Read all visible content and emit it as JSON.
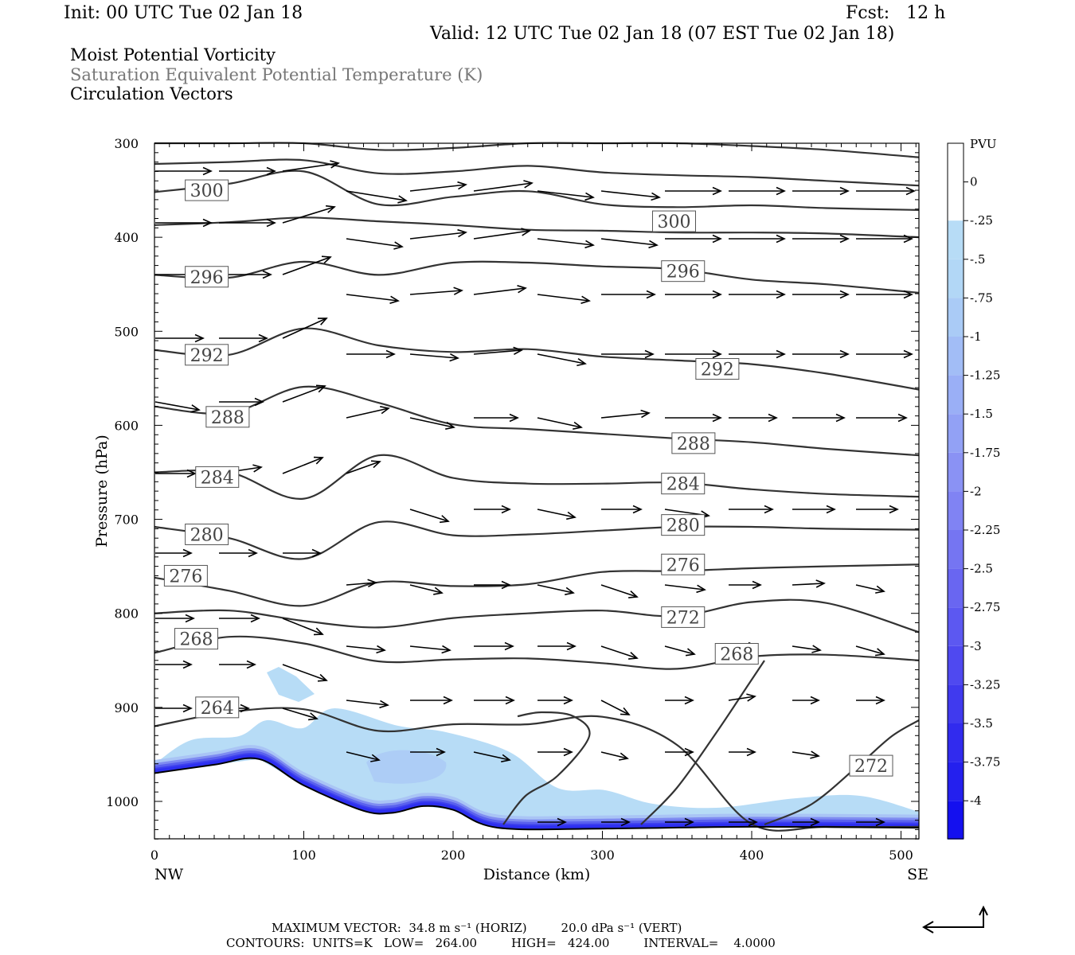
{
  "header": {
    "init": "Init: 00 UTC Tue 02 Jan 18",
    "fcst": "Fcst:   12 h",
    "valid": "Valid: 12 UTC Tue 02 Jan 18 (07 EST Tue 02 Jan 18)"
  },
  "titles": {
    "line1": "Moist Potential Vorticity",
    "line2": "Saturation Equivalent Potential Temperature (K)",
    "line3": "Circulation Vectors"
  },
  "colors": {
    "contour": "#333333",
    "shade_light": "#b7dcf6",
    "shade_mid": "#a8c6f6",
    "shade_dark": "#2d2ff0",
    "text_gray": "#777777"
  },
  "chart_data": {
    "type": "cross-section",
    "xlabel": "Distance (km)",
    "ylabel": "Pressure (hPa)",
    "xlim": [
      0,
      512
    ],
    "ylim": [
      300,
      1040
    ],
    "y_axis": "pressure, increasing downward",
    "x_ticks": [
      "0",
      "100",
      "200",
      "300",
      "400",
      "500"
    ],
    "y_ticks": [
      "300",
      "400",
      "500",
      "600",
      "700",
      "800",
      "900",
      "1000"
    ],
    "x_end_labels": {
      "left": "NW",
      "right": "SE"
    },
    "colorbar": {
      "unit": "PVU",
      "labels": [
        "0",
        "-.25",
        "-.5",
        "-.75",
        "-1",
        "-1.25",
        "-1.5",
        "-1.75",
        "-2",
        "-2.25",
        "-2.5",
        "-2.75",
        "-3",
        "-3.25",
        "-3.5",
        "-3.75",
        "-4"
      ]
    },
    "contour_labels": [
      {
        "text": "300",
        "x": 35,
        "p": 350
      },
      {
        "text": "300",
        "x": 348,
        "p": 383
      },
      {
        "text": "296",
        "x": 35,
        "p": 442
      },
      {
        "text": "296",
        "x": 354,
        "p": 436
      },
      {
        "text": "292",
        "x": 35,
        "p": 525
      },
      {
        "text": "292",
        "x": 377,
        "p": 540
      },
      {
        "text": "288",
        "x": 49,
        "p": 591
      },
      {
        "text": "288",
        "x": 361,
        "p": 619
      },
      {
        "text": "284",
        "x": 42,
        "p": 655
      },
      {
        "text": "284",
        "x": 354,
        "p": 662
      },
      {
        "text": "280",
        "x": 35,
        "p": 716
      },
      {
        "text": "280",
        "x": 354,
        "p": 706
      },
      {
        "text": "276",
        "x": 21,
        "p": 760
      },
      {
        "text": "276",
        "x": 354,
        "p": 748
      },
      {
        "text": "272",
        "x": 354,
        "p": 804
      },
      {
        "text": "272",
        "x": 480,
        "p": 962
      },
      {
        "text": "268",
        "x": 28,
        "p": 827
      },
      {
        "text": "268",
        "x": 390,
        "p": 843
      },
      {
        "text": "264",
        "x": 42,
        "p": 900
      }
    ],
    "isentropes": [
      {
        "x": [
          0,
          50,
          100,
          150,
          200,
          250,
          300,
          350,
          400,
          450,
          512
        ],
        "p": [
          300,
          300,
          300,
          307,
          305,
          300,
          300,
          300,
          303,
          307,
          315
        ]
      },
      {
        "x": [
          0,
          50,
          100,
          150,
          200,
          250,
          300,
          350,
          400,
          450,
          512
        ],
        "p": [
          322,
          320,
          318,
          332,
          330,
          324,
          331,
          334,
          336,
          340,
          345
        ]
      },
      {
        "x": [
          0,
          50,
          100,
          150,
          200,
          250,
          300,
          350,
          400,
          450,
          512
        ],
        "p": [
          352,
          343,
          330,
          365,
          357,
          351,
          365,
          368,
          366,
          369,
          371
        ]
      },
      {
        "x": [
          0,
          50,
          100,
          150,
          200,
          250,
          300,
          350,
          400,
          450,
          512
        ],
        "p": [
          387,
          384,
          379,
          383,
          387,
          392,
          393,
          395,
          395,
          396,
          400
        ]
      },
      {
        "x": [
          0,
          50,
          100,
          150,
          200,
          250,
          300,
          350,
          400,
          450,
          512
        ],
        "p": [
          440,
          443,
          426,
          440,
          427,
          427,
          431,
          434,
          445,
          450,
          459
        ]
      },
      {
        "x": [
          0,
          50,
          100,
          150,
          200,
          250,
          300,
          350,
          400,
          450,
          512
        ],
        "p": [
          520,
          525,
          497,
          515,
          522,
          519,
          527,
          531,
          535,
          545,
          562
        ]
      },
      {
        "x": [
          0,
          50,
          100,
          150,
          200,
          250,
          300,
          350,
          400,
          450,
          512
        ],
        "p": [
          580,
          587,
          559,
          576,
          599,
          604,
          609,
          614,
          618,
          625,
          632
        ]
      },
      {
        "x": [
          0,
          50,
          100,
          150,
          200,
          250,
          300,
          350,
          400,
          450,
          512
        ],
        "p": [
          650,
          650,
          678,
          632,
          656,
          662,
          662,
          661,
          668,
          673,
          676
        ]
      },
      {
        "x": [
          0,
          50,
          100,
          150,
          200,
          250,
          300,
          350,
          400,
          450,
          512
        ],
        "p": [
          708,
          720,
          742,
          703,
          717,
          716,
          712,
          708,
          708,
          710,
          711
        ]
      },
      {
        "x": [
          0,
          50,
          100,
          150,
          200,
          250,
          300,
          350,
          400,
          450,
          512
        ],
        "p": [
          762,
          776,
          792,
          767,
          771,
          769,
          756,
          755,
          752,
          750,
          748
        ]
      },
      {
        "x": [
          0,
          50,
          100,
          150,
          200,
          250,
          300,
          350,
          400,
          450,
          512
        ],
        "p": [
          800,
          797,
          808,
          815,
          805,
          800,
          797,
          803,
          788,
          789,
          820
        ]
      },
      {
        "x": [
          0,
          50,
          100,
          150,
          200,
          250,
          300,
          350,
          400,
          450,
          512
        ],
        "p": [
          842,
          825,
          832,
          851,
          849,
          848,
          853,
          859,
          846,
          844,
          850
        ]
      },
      {
        "x": [
          0,
          50,
          100,
          150,
          200,
          250,
          300,
          350,
          400,
          450,
          512
        ],
        "p": [
          920,
          905,
          902,
          925,
          918,
          918,
          910,
          940,
          1024,
          1027,
          1027
        ]
      }
    ],
    "terrain_p": [
      {
        "x": 0,
        "p": 970
      },
      {
        "x": 40,
        "p": 961
      },
      {
        "x": 70,
        "p": 955
      },
      {
        "x": 100,
        "p": 983
      },
      {
        "x": 140,
        "p": 1010
      },
      {
        "x": 160,
        "p": 1012
      },
      {
        "x": 180,
        "p": 1005
      },
      {
        "x": 200,
        "p": 1009
      },
      {
        "x": 230,
        "p": 1028
      },
      {
        "x": 300,
        "p": 1029
      },
      {
        "x": 400,
        "p": 1027
      },
      {
        "x": 512,
        "p": 1028
      }
    ],
    "vectors_note": "circulation vectors drawn as arrows pointing mostly eastward (SE)",
    "footer": {
      "max_vector": "MAXIMUM VECTOR:  34.8 m s⁻¹ (HORIZ)         20.0 dPa s⁻¹ (VERT)",
      "contours": "CONTOURS:  UNITS=K   LOW=   264.00         HIGH=   424.00         INTERVAL=    4.0000"
    }
  }
}
